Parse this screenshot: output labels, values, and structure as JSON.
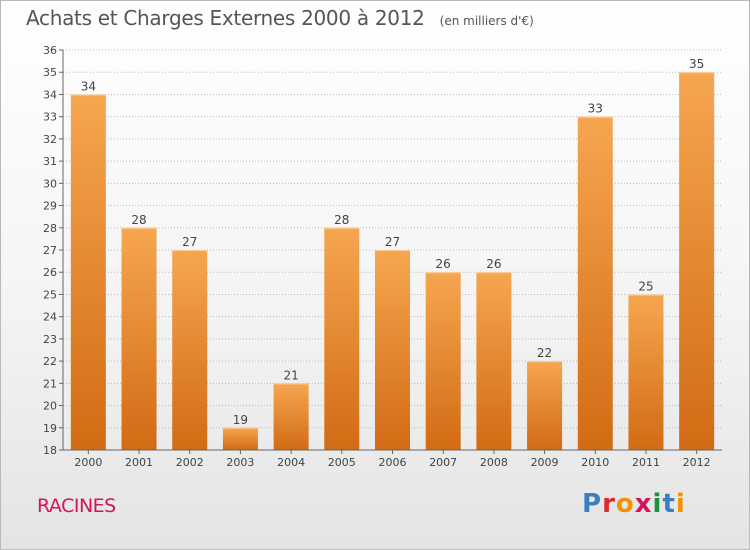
{
  "title": "Achats et Charges Externes 2000 à 2012",
  "unit_note": "(en milliers d'€)",
  "commune": "RACINES",
  "logo": {
    "text": "Proxiti",
    "colors": [
      "#3a7fc1",
      "#e0282e",
      "#f39200",
      "#d4145a",
      "#1f8f3a",
      "#3a7fc1",
      "#f39200"
    ]
  },
  "colors": {
    "bar_top": "#f6a650",
    "bar_bottom": "#d26b14",
    "grid": "#bbbbbb",
    "commune": "#d4145a"
  },
  "chart_data": {
    "type": "bar",
    "categories": [
      "2000",
      "2001",
      "2002",
      "2003",
      "2004",
      "2005",
      "2006",
      "2007",
      "2008",
      "2009",
      "2010",
      "2011",
      "2012"
    ],
    "values": [
      34,
      28,
      27,
      19,
      21,
      28,
      27,
      26,
      26,
      22,
      33,
      25,
      35
    ],
    "ylim": [
      18,
      36
    ],
    "yticks": [
      18,
      19,
      20,
      21,
      22,
      23,
      24,
      25,
      26,
      27,
      28,
      29,
      30,
      31,
      32,
      33,
      34,
      35,
      36
    ],
    "grid": true,
    "data_labels": true
  }
}
